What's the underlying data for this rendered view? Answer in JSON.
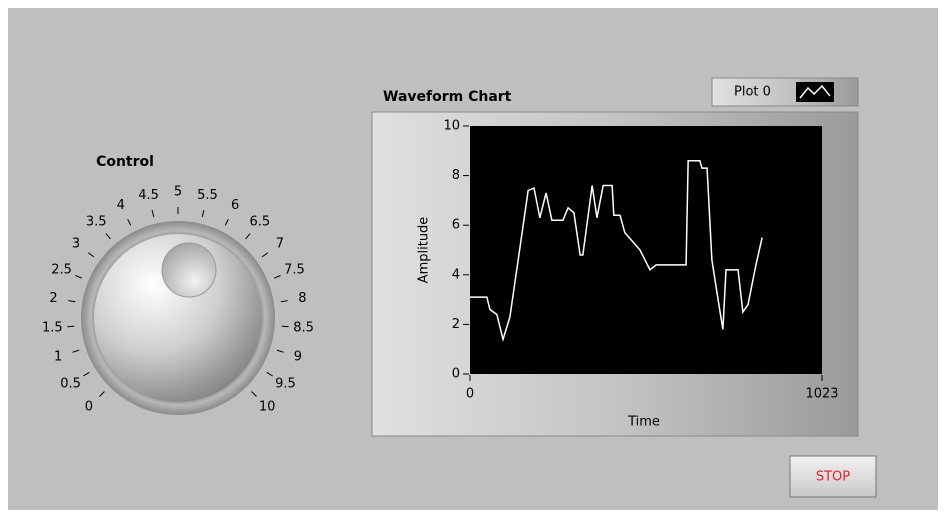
{
  "knob": {
    "label": "Control",
    "range": [
      0,
      10
    ],
    "ticks": [
      0,
      0.5,
      1,
      1.5,
      2,
      2.5,
      3,
      3.5,
      4,
      4.5,
      5,
      5.5,
      6,
      6.5,
      7,
      7.5,
      8,
      8.5,
      9,
      9.5,
      10
    ]
  },
  "chart_data": {
    "type": "line",
    "title": "Waveform Chart",
    "x_label": "Time",
    "y_label": "Amplitude",
    "x": [
      0,
      49,
      58,
      78,
      96,
      116,
      140,
      169,
      186,
      203,
      221,
      238,
      270,
      285,
      302,
      320,
      328,
      355,
      369,
      387,
      413,
      418,
      436,
      450,
      494,
      523,
      541,
      628,
      634,
      668,
      674,
      689,
      703,
      721,
      735,
      744,
      779,
      793,
      808,
      831,
      849
    ],
    "series": [
      {
        "name": "Plot 0",
        "color": "#ffffff",
        "values": [
          3.1,
          3.1,
          2.6,
          2.4,
          1.4,
          2.3,
          4.6,
          7.4,
          7.5,
          6.3,
          7.3,
          6.2,
          6.2,
          6.7,
          6.5,
          4.8,
          4.8,
          7.6,
          6.3,
          7.6,
          7.6,
          6.4,
          6.4,
          5.7,
          5.0,
          4.2,
          4.4,
          4.4,
          8.6,
          8.6,
          8.3,
          8.3,
          4.6,
          3.0,
          1.8,
          4.2,
          4.2,
          2.5,
          2.8,
          4.4,
          5.5
        ]
      }
    ],
    "xlim": [
      0,
      1023
    ],
    "xticks": [
      0,
      1023
    ],
    "ylim": [
      0,
      10
    ],
    "yticks": [
      0,
      2,
      4,
      6,
      8,
      10
    ]
  },
  "stop_button": {
    "label": "STOP"
  }
}
